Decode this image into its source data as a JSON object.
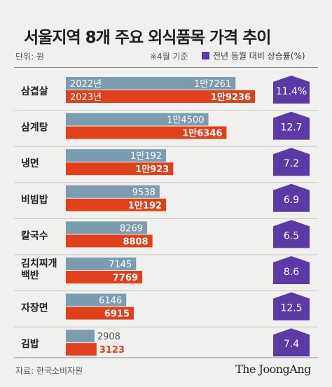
{
  "header": {
    "title": "서울지역 8개 주요 외식품목 가격 추이",
    "unit": "단위: 원",
    "note": "※4월 기준",
    "legend": "전년 동월 대비 상승률(%)"
  },
  "footer": {
    "source": "자료: 한국소비자원",
    "brand": "The JoongAng"
  },
  "colors": {
    "bar_2022": "#7c9db0",
    "bar_2023": "#e2401b",
    "badge": "#5b3aa6",
    "background": "#f0f0ee"
  },
  "chart_data": {
    "type": "bar",
    "orientation": "horizontal",
    "categories": [
      "삼겹살",
      "삼계탕",
      "냉면",
      "비빔밥",
      "칼국수",
      "김치찌개 백반",
      "자장면",
      "김밥"
    ],
    "series": [
      {
        "name": "2022년",
        "values": [
          17261,
          14500,
          10192,
          9538,
          8269,
          7145,
          6146,
          2908
        ],
        "labels": [
          "1만7261",
          "1만4500",
          "1만192",
          "9538",
          "8269",
          "7145",
          "6146",
          "2908"
        ]
      },
      {
        "name": "2023년",
        "values": [
          19236,
          16346,
          10923,
          10192,
          8808,
          7769,
          6915,
          3123
        ],
        "labels": [
          "1만9236",
          "1만6346",
          "1만923",
          "1만192",
          "8808",
          "7769",
          "6915",
          "3123"
        ]
      }
    ],
    "increase_rate": [
      "11.4%",
      "12.7",
      "7.2",
      "6.9",
      "6.5",
      "8.6",
      "12.5",
      "7.4"
    ]
  }
}
